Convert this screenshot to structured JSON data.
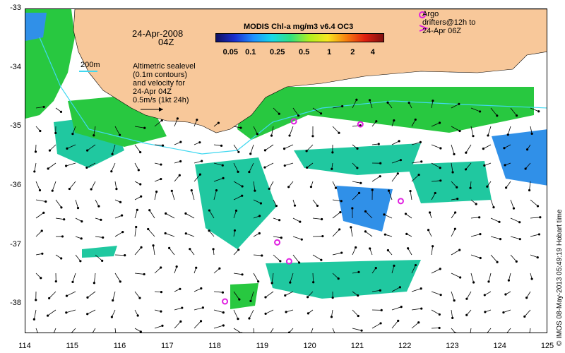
{
  "map": {
    "date": "24-Apr-2008",
    "time": "04Z",
    "colorbar": {
      "title": "MODIS Chl-a mg/m3 v6.4 OC3",
      "ticks": [
        "0.05",
        "0.1",
        "0.25",
        "0.5",
        "1",
        "2",
        "4"
      ]
    },
    "contour_label": "200m",
    "altimetry_text": [
      "Altimetric sealevel",
      "(0.1m contours)",
      "and velocity for",
      "24-Apr 04Z",
      "0.5m/s (1kt 24h)"
    ],
    "argo_text": [
      "Argo",
      "drifters@12h to",
      "24-Apr 06Z"
    ],
    "lat_labels": [
      "-33",
      "-34",
      "-35",
      "-36",
      "-37",
      "-38"
    ],
    "lon_labels": [
      "114",
      "115",
      "116",
      "117",
      "118",
      "119",
      "120",
      "121",
      "122",
      "123",
      "124",
      "125"
    ],
    "stamp": "© IMOS 08-May-2013 05:49:19 Hobart time",
    "colors": {
      "land": "#f8c89a",
      "chl_green": "#28c840",
      "chl_teal": "#20c8a0",
      "chl_blue": "#3090e8",
      "argo": "#e020e0",
      "contour": "#40d8f0"
    },
    "argo_floats": [
      {
        "lon": 119.65,
        "lat": -34.9
      },
      {
        "lon": 121.05,
        "lat": -34.95
      },
      {
        "lon": 121.9,
        "lat": -36.25
      },
      {
        "lon": 119.3,
        "lat": -36.95
      },
      {
        "lon": 119.55,
        "lat": -37.27
      },
      {
        "lon": 118.2,
        "lat": -37.95
      }
    ]
  }
}
